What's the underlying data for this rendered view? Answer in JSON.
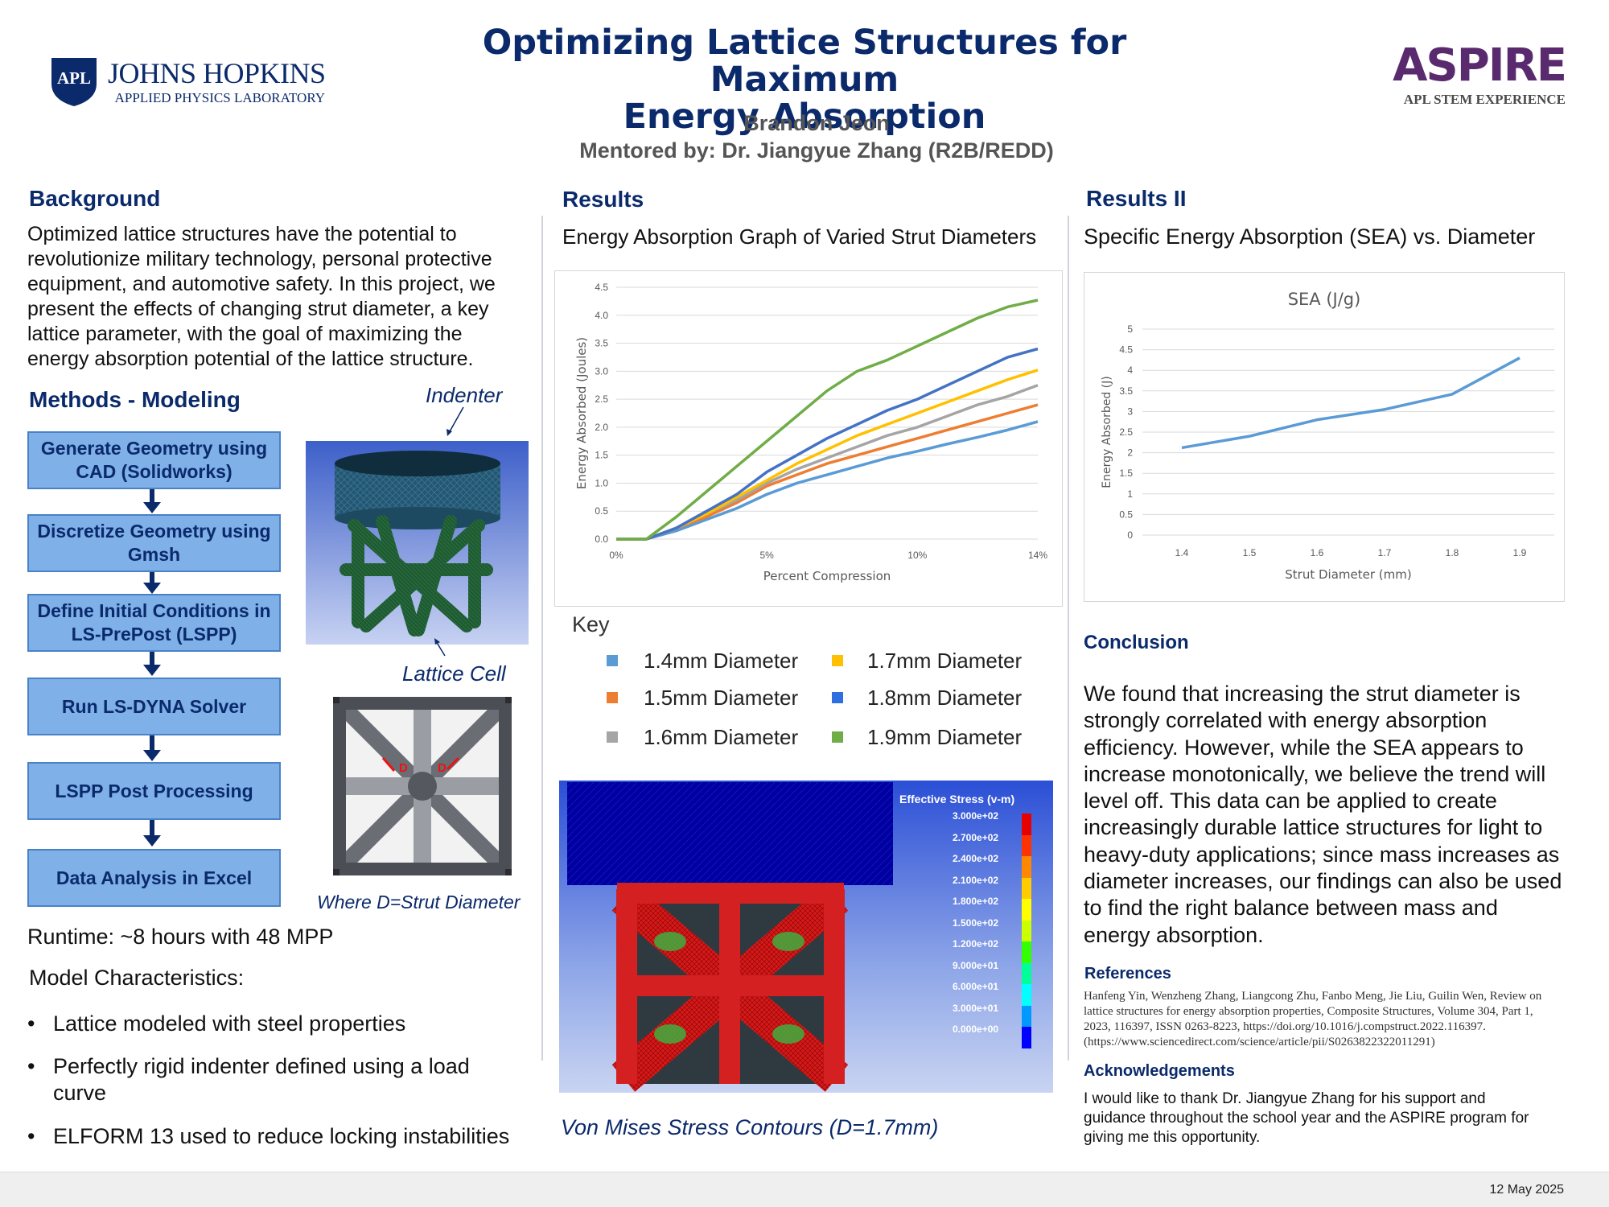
{
  "header": {
    "logo_apl": "APL",
    "logo_org": "JOHNS HOPKINS",
    "logo_sub": "APPLIED PHYSICS LABORATORY",
    "title_line1": "Optimizing Lattice Structures for Maximum",
    "title_line2": "Energy Absorption",
    "author": "Brandon Jeon",
    "mentor": "Mentored by: Dr. Jiangyue Zhang (R2B/REDD)",
    "aspire_logo": "ASPIRE",
    "aspire_sub": "APL STEM EXPERIENCE",
    "colors": {
      "navy": "#0b2a6b",
      "aspire_purple": "#5a2a6e"
    }
  },
  "background": {
    "heading": "Background",
    "lines": [
      "Optimized lattice structures have the potential to",
      "revolutionize military technology, personal protective",
      "equipment, and automotive safety. In this project, we",
      "present the effects of changing strut diameter, a key",
      "lattice parameter, with the goal of maximizing the",
      "energy absorption potential of the lattice structure."
    ]
  },
  "methods": {
    "heading": "Methods - Modeling",
    "steps": [
      "Generate Geometry using CAD (Solidworks)",
      "Discretize Geometry using Gmsh",
      "Define Initial Conditions in LS-PrePost (LSPP)",
      "Run LS-DYNA Solver",
      "LSPP Post Processing",
      "Data Analysis in Excel"
    ],
    "indenter_label": "Indenter",
    "lattice_label": "Lattice Cell",
    "d_label": "D",
    "where_label": "Where D=Strut Diameter",
    "runtime": "Runtime: ~8 hours with 48 MPP",
    "model_char_heading": "Model Characteristics:",
    "bullets": [
      [
        "Lattice modeled with steel properties"
      ],
      [
        "Perfectly rigid indenter defined using a load",
        "curve"
      ],
      [
        "ELFORM 13 used to reduce locking instabilities"
      ]
    ],
    "bullet_glyph": "•"
  },
  "results": {
    "heading": "Results",
    "graph_title": "Energy Absorption Graph of Varied Strut Diameters",
    "key_heading": "Key",
    "stress_caption": "Von Mises Stress Contours (D=1.7mm)",
    "legend_title": "Effective Stress (v-m)",
    "legend_values": [
      "3.000e+02",
      "2.700e+02",
      "2.400e+02",
      "2.100e+02",
      "1.800e+02",
      "1.500e+02",
      "1.200e+02",
      "9.000e+01",
      "6.000e+01",
      "3.000e+01",
      "0.000e+00"
    ],
    "legend_colors": [
      "#e60000",
      "#ff3300",
      "#ff8800",
      "#ffcc00",
      "#ffff00",
      "#ccff00",
      "#33ff00",
      "#00ff99",
      "#00ffff",
      "#0099ff",
      "#0000ff"
    ]
  },
  "results2": {
    "heading": "Results II",
    "graph_title": "Specific Energy Absorption (SEA) vs. Diameter"
  },
  "chart_data": [
    {
      "type": "line",
      "title": "",
      "xlabel": "Percent Compression",
      "ylabel": "Energy Absorbed (Joules)",
      "x_ticks": [
        "0%",
        "5%",
        "10%",
        "14%"
      ],
      "y_ticks": [
        "0.0",
        "0.5",
        "1.0",
        "1.5",
        "2.0",
        "2.5",
        "3.0",
        "3.5",
        "4.0",
        "4.5"
      ],
      "xlim": [
        0,
        14
      ],
      "ylim": [
        0,
        4.5
      ],
      "x": [
        0,
        1,
        2,
        3,
        4,
        5,
        6,
        7,
        8,
        9,
        10,
        11,
        12,
        13,
        14
      ],
      "series": [
        {
          "name": "1.4mm Diameter",
          "color": "#5b9bd5",
          "values": [
            0,
            0,
            0.15,
            0.35,
            0.55,
            0.8,
            1.0,
            1.15,
            1.3,
            1.45,
            1.57,
            1.7,
            1.82,
            1.95,
            2.1
          ]
        },
        {
          "name": "1.5mm Diameter",
          "color": "#ed7d31",
          "values": [
            0,
            0,
            0.2,
            0.4,
            0.65,
            0.95,
            1.15,
            1.35,
            1.5,
            1.65,
            1.8,
            1.95,
            2.1,
            2.25,
            2.4
          ]
        },
        {
          "name": "1.6mm Diameter",
          "color": "#a5a5a5",
          "values": [
            0,
            0,
            0.2,
            0.45,
            0.7,
            1.0,
            1.25,
            1.45,
            1.65,
            1.85,
            2.0,
            2.2,
            2.4,
            2.55,
            2.75
          ]
        },
        {
          "name": "1.7mm Diameter",
          "color": "#ffc000",
          "values": [
            0,
            0,
            0.2,
            0.45,
            0.75,
            1.05,
            1.35,
            1.6,
            1.85,
            2.05,
            2.25,
            2.45,
            2.65,
            2.85,
            3.02
          ]
        },
        {
          "name": "1.8mm Diameter",
          "color": "#4472c4",
          "values": [
            0,
            0,
            0.2,
            0.5,
            0.8,
            1.2,
            1.5,
            1.8,
            2.05,
            2.3,
            2.5,
            2.75,
            3.0,
            3.25,
            3.4
          ]
        },
        {
          "name": "1.9mm Diameter",
          "color": "#70ad47",
          "values": [
            0,
            0,
            0.4,
            0.85,
            1.3,
            1.75,
            2.2,
            2.65,
            3.0,
            3.2,
            3.45,
            3.7,
            3.95,
            4.15,
            4.27
          ]
        }
      ]
    },
    {
      "type": "line",
      "title": "SEA (J/g)",
      "xlabel": "Strut Diameter (mm)",
      "ylabel": "Energy Absorbed (J)",
      "categories": [
        "1.4",
        "1.5",
        "1.6",
        "1.7",
        "1.8",
        "1.9"
      ],
      "y_ticks": [
        "0",
        "0.5",
        "1",
        "1.5",
        "2",
        "2.5",
        "3",
        "3.5",
        "4",
        "4.5",
        "5"
      ],
      "ylim": [
        0,
        5
      ],
      "series": [
        {
          "color": "#5b9bd5",
          "values": [
            2.12,
            2.4,
            2.8,
            3.05,
            3.42,
            4.3
          ]
        }
      ]
    }
  ],
  "conclusion": {
    "heading": "Conclusion",
    "lines": [
      "We found that increasing the strut diameter is",
      "strongly correlated with energy absorption",
      "efficiency. However, while the SEA appears to",
      "increase monotonically, we believe the trend will",
      "level off. This data can be applied to create",
      "increasingly durable lattice structures for light to",
      "heavy-duty applications; since mass increases as",
      "diameter increases, our findings can also be used",
      "to find the right balance between mass and",
      "energy absorption."
    ]
  },
  "references": {
    "heading": "References",
    "lines": [
      "Hanfeng Yin, Wenzheng Zhang, Liangcong Zhu, Fanbo Meng, Jie Liu, Guilin Wen, Review on",
      "lattice structures for energy absorption properties, Composite Structures, Volume 304, Part 1,",
      "2023, 116397, ISSN 0263-8223, https://doi.org/10.1016/j.compstruct.2022.116397.",
      "(https://www.sciencedirect.com/science/article/pii/S0263822322011291)"
    ]
  },
  "acknowledgements": {
    "heading": "Acknowledgements",
    "lines": [
      "I would like to thank Dr. Jiangyue Zhang for his support and",
      "guidance throughout the school year and the ASPIRE program for",
      "giving me this opportunity."
    ]
  },
  "footer": {
    "date": "12 May 2025"
  }
}
